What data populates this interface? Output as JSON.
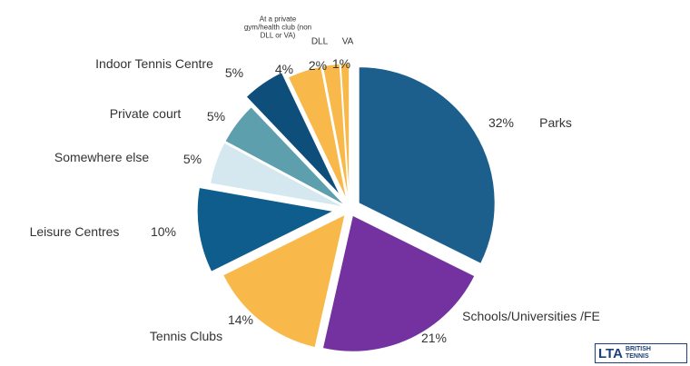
{
  "chart_data": {
    "type": "pie",
    "categories": [
      "Parks",
      "Schools/Universities /FE",
      "Tennis Clubs",
      "Leisure Centres",
      "Somewhere else",
      "Private court",
      "Indoor Tennis Centre",
      "At a private gym/health club (non DLL or VA)",
      "DLL",
      "VA"
    ],
    "values": [
      32,
      21,
      14,
      10,
      5,
      5,
      5,
      4,
      2,
      1
    ],
    "value_labels": [
      "32%",
      "21%",
      "14%",
      "10%",
      "5%",
      "5%",
      "5%",
      "4%",
      "2%",
      "1%"
    ],
    "colors": [
      "#1d5f8c",
      "#7432a0",
      "#f8b84a",
      "#0f5d8d",
      "#d6e8ef",
      "#5d9fac",
      "#0e4e7b",
      "#f8b84a",
      "#f8b84a",
      "#f8b84a"
    ]
  },
  "logo": {
    "name": "LTA",
    "subtitle": "BRITISH TENNIS"
  }
}
